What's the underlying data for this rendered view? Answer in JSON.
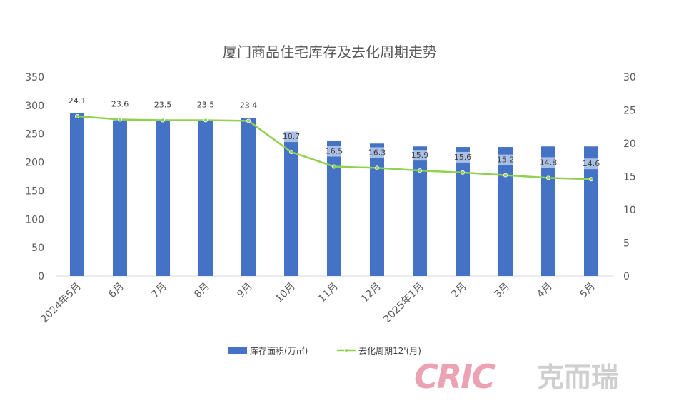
{
  "chart_data": {
    "type": "bar",
    "title": "厦门商品住宅库存及去化周期走势",
    "categories": [
      "2024年5月",
      "6月",
      "7月",
      "8月",
      "9月",
      "10月",
      "11月",
      "12月",
      "2025年1月",
      "2月",
      "3月",
      "4月",
      "5月"
    ],
    "series": [
      {
        "name": "库存面积(万㎡)",
        "type": "bar",
        "axis": "left",
        "color": "#4472C4",
        "values": [
          286,
          274,
          273,
          275,
          278,
          254,
          238,
          233,
          228,
          227,
          227,
          228,
          228
        ]
      },
      {
        "name": "去化周期12'(月)",
        "type": "line",
        "axis": "right",
        "color": "#92D050",
        "values": [
          24.1,
          23.6,
          23.5,
          23.5,
          23.4,
          18.7,
          16.5,
          16.3,
          15.9,
          15.6,
          15.2,
          14.8,
          14.6
        ],
        "labels": [
          "24.1",
          "23.6",
          "23.5",
          "23.5",
          "23.4",
          "18.7",
          "16.5",
          "16.3",
          "15.9",
          "15.6",
          "15.2",
          "14.8",
          "14.6"
        ]
      }
    ],
    "y_left": {
      "min": 0,
      "max": 350,
      "ticks": [
        "0",
        "50",
        "100",
        "150",
        "200",
        "250",
        "300",
        "350"
      ]
    },
    "y_right": {
      "min": 0,
      "max": 30,
      "ticks": [
        "0",
        "5",
        "10",
        "15",
        "20",
        "25",
        "30"
      ]
    },
    "legend_position": "bottom",
    "grid": false
  },
  "watermark": {
    "logo": "CRIC",
    "text": "克而瑞"
  }
}
